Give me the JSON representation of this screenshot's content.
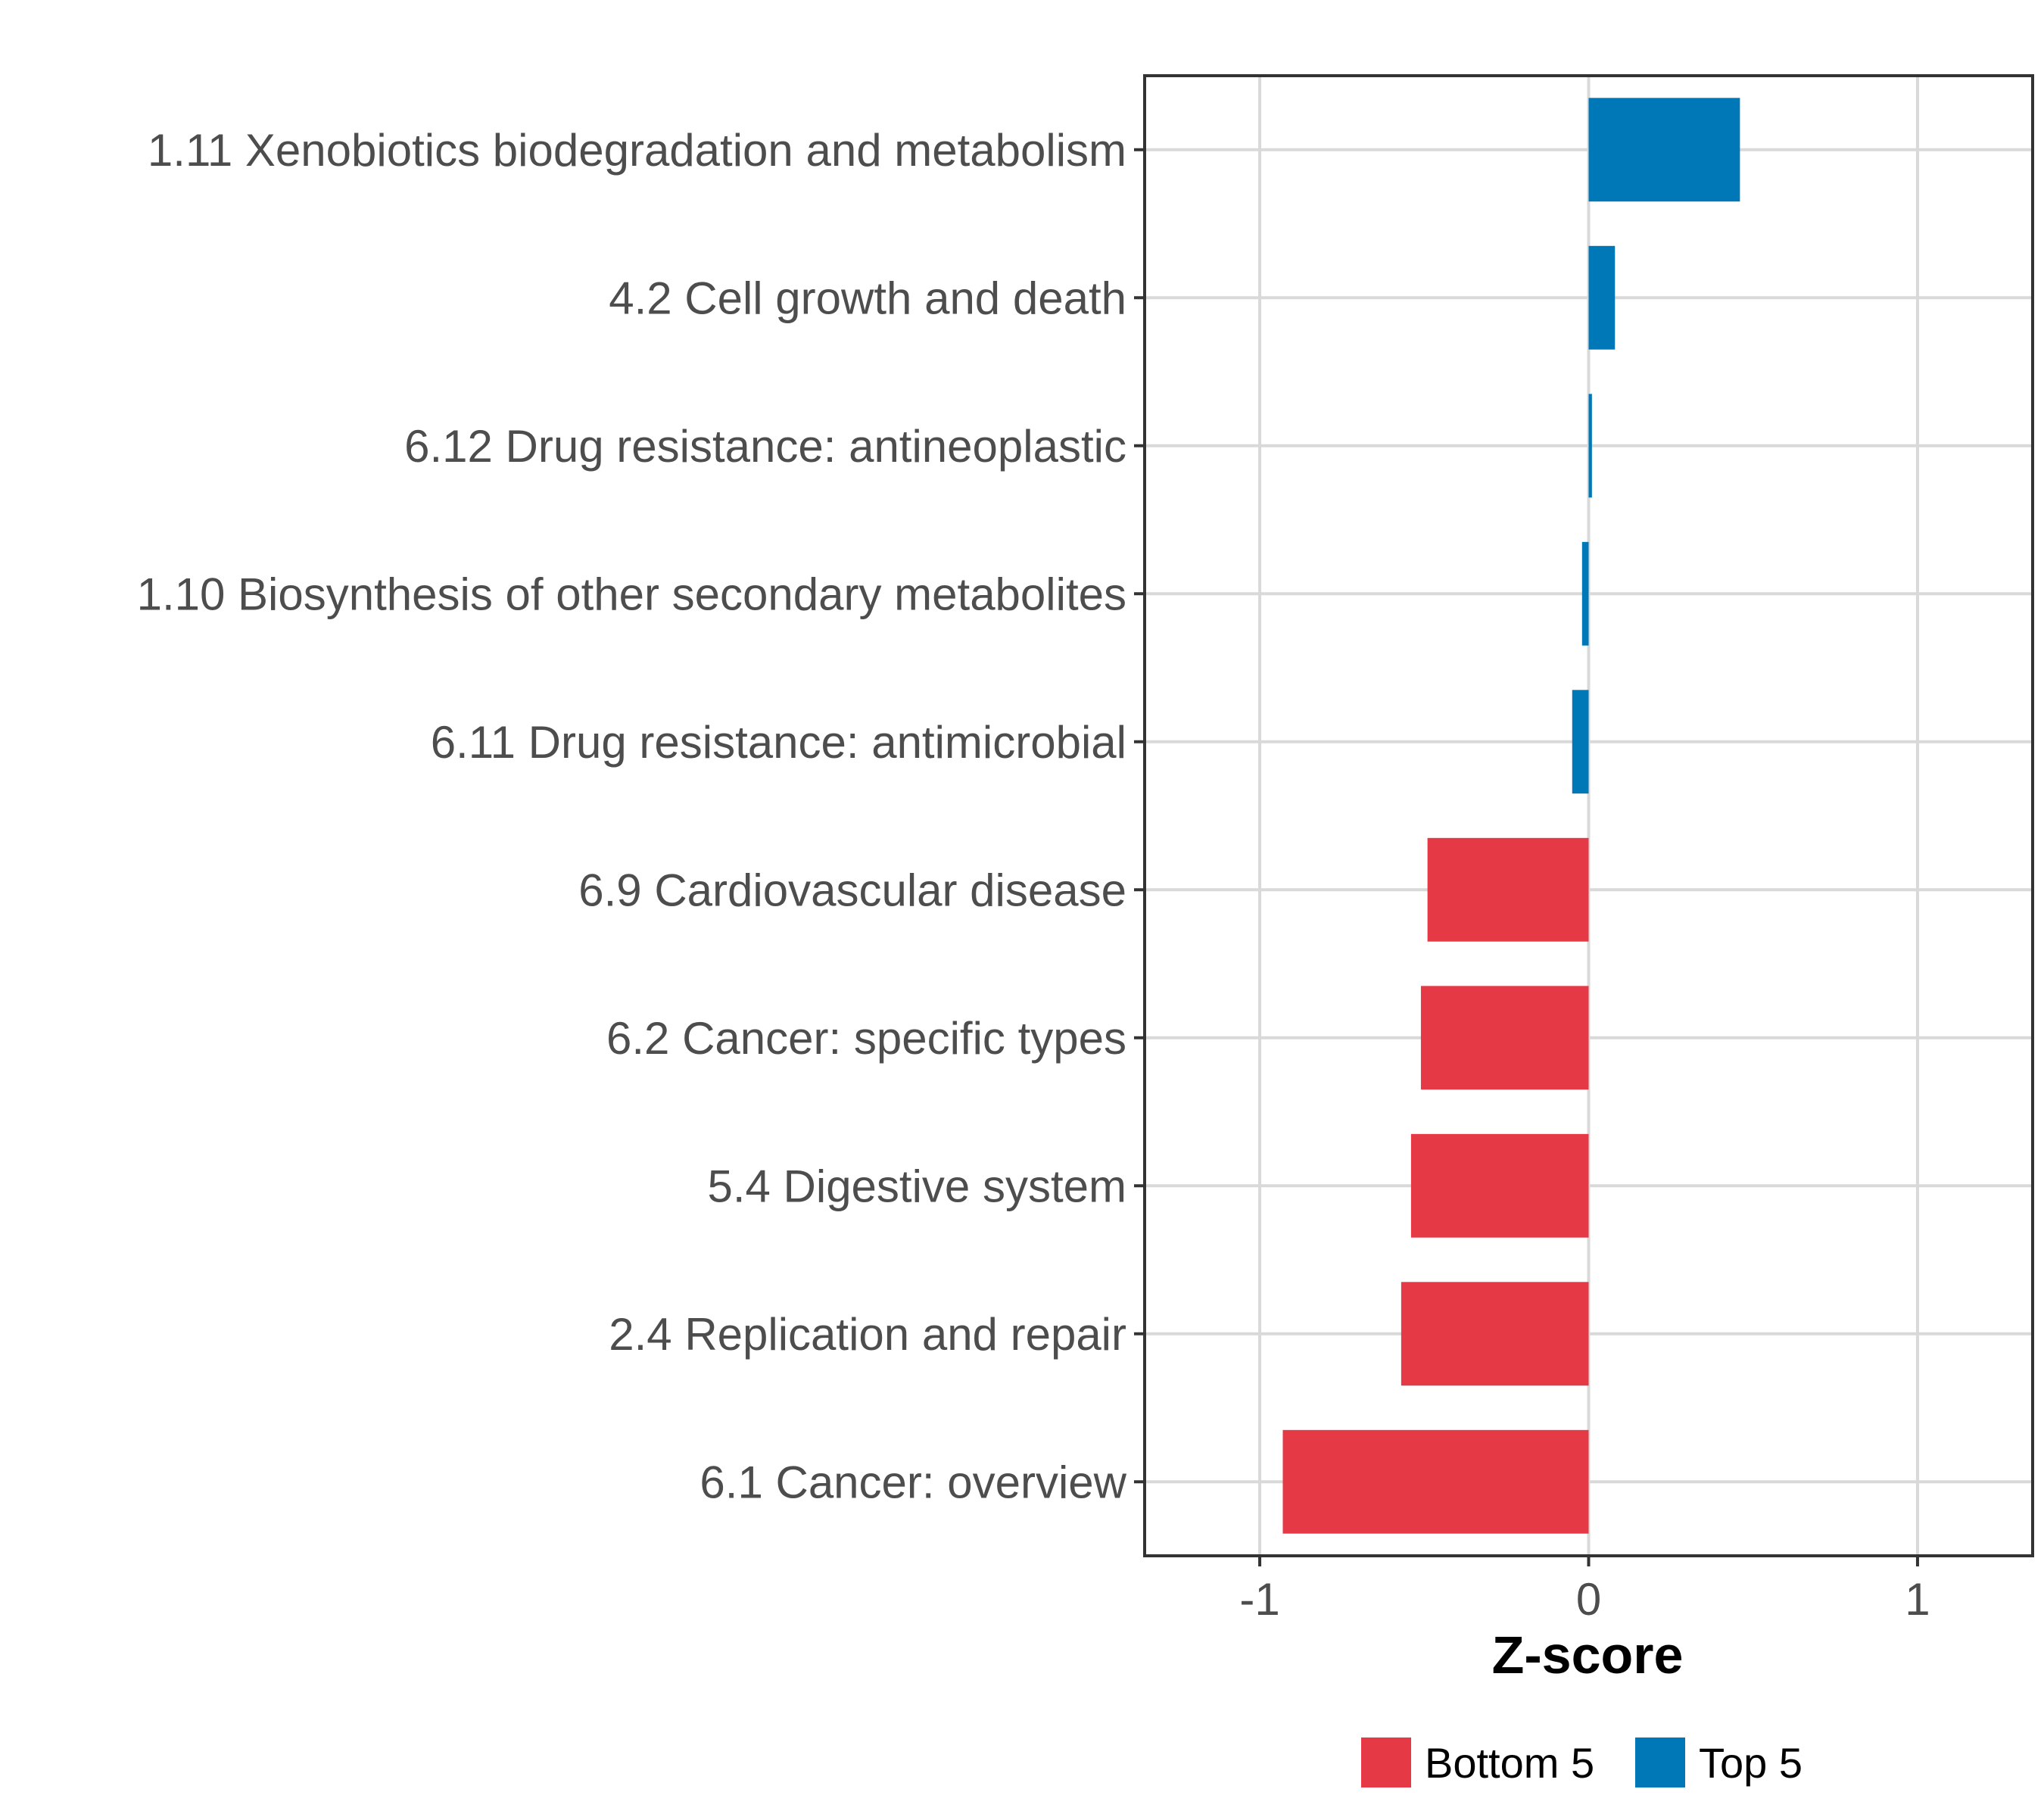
{
  "chart_data": {
    "type": "bar",
    "orientation": "horizontal",
    "xlabel": "Z-score",
    "xlim": [
      -1.35,
      1.35
    ],
    "x_ticks": [
      -1,
      0,
      1
    ],
    "x_tick_labels": [
      "-1",
      "0",
      "1"
    ],
    "categories": [
      "1.11 Xenobiotics biodegradation and metabolism",
      "4.2 Cell growth and death",
      "6.12 Drug resistance: antineoplastic",
      "1.10 Biosynthesis of other secondary metabolites",
      "6.11 Drug resistance: antimicrobial",
      "6.9 Cardiovascular disease",
      "6.2 Cancer: specific types",
      "5.4 Digestive system",
      "2.4 Replication and repair",
      "6.1 Cancer: overview"
    ],
    "values": [
      0.46,
      0.08,
      0.01,
      -0.02,
      -0.05,
      -0.49,
      -0.51,
      -0.54,
      -0.57,
      -0.93
    ],
    "groups": [
      "Top 5",
      "Top 5",
      "Top 5",
      "Top 5",
      "Top 5",
      "Bottom 5",
      "Bottom 5",
      "Bottom 5",
      "Bottom 5",
      "Bottom 5"
    ],
    "legend": [
      {
        "name": "Bottom 5",
        "color": "#E63946"
      },
      {
        "name": "Top 5",
        "color": "#0077B6"
      }
    ],
    "legend_position": "bottom",
    "grid": true
  }
}
